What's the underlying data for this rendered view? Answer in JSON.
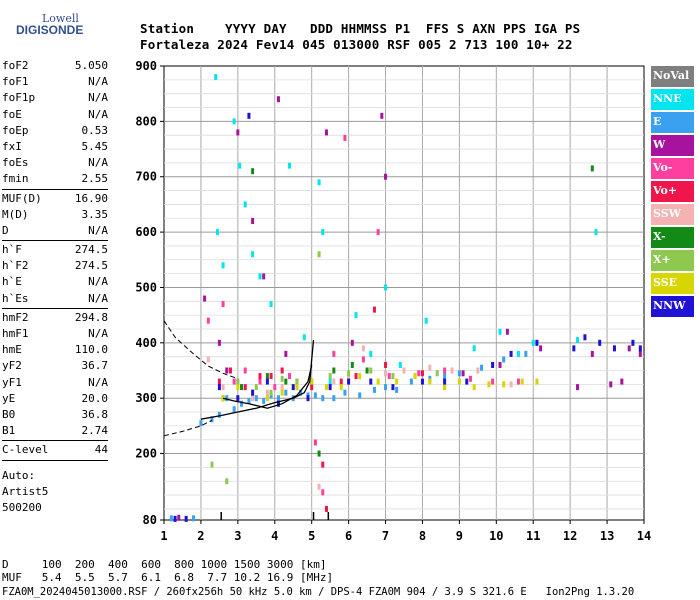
{
  "logo": {
    "line1": "Lowell",
    "line2": "DIGISONDE"
  },
  "header": {
    "line1": "Station    YYYY DAY   DDD HHMMSS P1  FFS S AXN PPS IGA PS",
    "line2": "Fortaleza 2024 Fev14 045 013000 RSF 005 2 713 100 10+ 22"
  },
  "params": [
    {
      "name": "foF2",
      "value": "5.050"
    },
    {
      "name": "foF1",
      "value": "N/A"
    },
    {
      "name": "foF1p",
      "value": "N/A"
    },
    {
      "name": "foE",
      "value": "N/A"
    },
    {
      "name": "foEp",
      "value": "0.53"
    },
    {
      "name": "fxI",
      "value": "5.45"
    },
    {
      "name": "foEs",
      "value": "N/A"
    },
    {
      "name": "fmin",
      "value": "2.55"
    },
    {
      "sep": true
    },
    {
      "name": "MUF(D)",
      "value": "16.90"
    },
    {
      "name": "M(D)",
      "value": "3.35"
    },
    {
      "name": "D",
      "value": "N/A"
    },
    {
      "sep": true
    },
    {
      "name": "h`F",
      "value": "274.5"
    },
    {
      "name": "h`F2",
      "value": "274.5"
    },
    {
      "name": "h`E",
      "value": "N/A"
    },
    {
      "name": "h`Es",
      "value": "N/A"
    },
    {
      "sep": true
    },
    {
      "name": "hmF2",
      "value": "294.8"
    },
    {
      "name": "hmF1",
      "value": "N/A"
    },
    {
      "name": "hmE",
      "value": "110.0"
    },
    {
      "name": "yF2",
      "value": "36.7"
    },
    {
      "name": "yF1",
      "value": "N/A"
    },
    {
      "name": "yE",
      "value": "20.0"
    },
    {
      "name": "B0",
      "value": "36.8"
    },
    {
      "name": "B1",
      "value": "2.74"
    },
    {
      "sep": true
    },
    {
      "name": "C-level",
      "value": "44"
    },
    {
      "sep": true
    }
  ],
  "auto": {
    "line1": "Auto:",
    "line2": "Artist5",
    "line3": "500200"
  },
  "legend": [
    {
      "label": "NoVal",
      "color": "#7f7f7f"
    },
    {
      "label": "NNE",
      "color": "#00e5ee"
    },
    {
      "label": "E",
      "color": "#3aa0f0"
    },
    {
      "label": "W",
      "color": "#a8139e"
    },
    {
      "label": "Vo-",
      "color": "#ff3fa0"
    },
    {
      "label": "Vo+",
      "color": "#f0154a"
    },
    {
      "label": "SSW",
      "color": "#f5b2b2"
    },
    {
      "label": "X-",
      "color": "#138a16"
    },
    {
      "label": "X+",
      "color": "#8ec84e"
    },
    {
      "label": "SSE",
      "color": "#d8d600"
    },
    {
      "label": "NNW",
      "color": "#1f12d4"
    }
  ],
  "footer": {
    "line_d": "D     100  200  400  600  800 1000 1500 3000 [km]",
    "line_muf": "MUF   5.4  5.5  5.7  6.1  6.8  7.7 10.2 16.9 [MHz]",
    "line_info": "FZA0M_2024045013000.RSF / 260fx256h 50 kHz 5.0 km / DPS-4 FZA0M 904 / 3.9 S 321.6 E   Ion2Png 1.3.20"
  },
  "chart_data": {
    "type": "scatter",
    "title": "",
    "xlabel": "",
    "ylabel": "",
    "xlim": [
      1,
      14
    ],
    "ylim": [
      80,
      900
    ],
    "x_ticks": [
      "1",
      "2",
      "3",
      "4",
      "5",
      "6",
      "7",
      "8",
      "9",
      "10",
      "11",
      "12",
      "13",
      "14"
    ],
    "y_ticks": [
      "80",
      "200",
      "300",
      "400",
      "500",
      "600",
      "700",
      "800",
      "900"
    ],
    "y_tick_values": [
      80,
      200,
      300,
      400,
      500,
      600,
      700,
      800,
      900
    ],
    "grid": true,
    "markers": {
      "foF2": 5.05,
      "fmin": 2.55,
      "fxI": 5.45
    },
    "series": [
      {
        "name": "NNE",
        "color": "#00e5ee",
        "points": [
          [
            2.4,
            880
          ],
          [
            2.45,
            600
          ],
          [
            2.6,
            540
          ],
          [
            2.9,
            800
          ],
          [
            3.05,
            720
          ],
          [
            3.2,
            650
          ],
          [
            3.4,
            560
          ],
          [
            3.6,
            520
          ],
          [
            3.9,
            470
          ],
          [
            4.4,
            720
          ],
          [
            4.8,
            410
          ],
          [
            5.2,
            690
          ],
          [
            5.3,
            600
          ],
          [
            5.5,
            330
          ],
          [
            6.2,
            450
          ],
          [
            6.6,
            380
          ],
          [
            7.0,
            500
          ],
          [
            7.4,
            360
          ],
          [
            8.1,
            440
          ],
          [
            9.4,
            390
          ],
          [
            10.1,
            420
          ],
          [
            10.6,
            380
          ],
          [
            11.0,
            400
          ],
          [
            12.7,
            600
          ],
          [
            12.2,
            405
          ]
        ]
      },
      {
        "name": "E",
        "color": "#3aa0f0",
        "points": [
          [
            2.0,
            255
          ],
          [
            2.3,
            262
          ],
          [
            2.5,
            270
          ],
          [
            2.7,
            300
          ],
          [
            2.9,
            280
          ],
          [
            3.1,
            290
          ],
          [
            3.3,
            295
          ],
          [
            3.5,
            300
          ],
          [
            3.7,
            295
          ],
          [
            3.9,
            305
          ],
          [
            4.1,
            300
          ],
          [
            4.3,
            310
          ],
          [
            4.5,
            300
          ],
          [
            4.7,
            310
          ],
          [
            4.9,
            305
          ],
          [
            5.1,
            305
          ],
          [
            5.3,
            300
          ],
          [
            5.6,
            300
          ],
          [
            5.9,
            310
          ],
          [
            6.3,
            305
          ],
          [
            6.7,
            315
          ],
          [
            7.0,
            320
          ],
          [
            7.3,
            315
          ],
          [
            7.7,
            330
          ],
          [
            8.2,
            335
          ],
          [
            8.6,
            340
          ],
          [
            9.0,
            345
          ],
          [
            9.6,
            355
          ],
          [
            10.2,
            370
          ],
          [
            10.8,
            380
          ],
          [
            1.2,
            83
          ],
          [
            1.8,
            83
          ]
        ]
      },
      {
        "name": "W",
        "color": "#a8139e",
        "points": [
          [
            2.1,
            480
          ],
          [
            2.5,
            400
          ],
          [
            2.7,
            350
          ],
          [
            3.0,
            780
          ],
          [
            3.4,
            620
          ],
          [
            3.7,
            520
          ],
          [
            4.1,
            840
          ],
          [
            4.3,
            380
          ],
          [
            5.4,
            780
          ],
          [
            6.1,
            400
          ],
          [
            6.9,
            810
          ],
          [
            7.0,
            700
          ],
          [
            9.1,
            345
          ],
          [
            10.1,
            360
          ],
          [
            10.3,
            420
          ],
          [
            11.2,
            390
          ],
          [
            12.2,
            320
          ],
          [
            12.6,
            380
          ],
          [
            13.1,
            325
          ],
          [
            13.4,
            330
          ],
          [
            13.6,
            390
          ],
          [
            13.9,
            380
          ],
          [
            1.4,
            84
          ]
        ]
      },
      {
        "name": "Vo-",
        "color": "#ff3fa0",
        "points": [
          [
            2.2,
            440
          ],
          [
            2.6,
            470
          ],
          [
            2.9,
            330
          ],
          [
            3.2,
            350
          ],
          [
            3.6,
            330
          ],
          [
            4.0,
            320
          ],
          [
            4.4,
            340
          ],
          [
            5.1,
            220
          ],
          [
            5.3,
            130
          ],
          [
            5.6,
            380
          ],
          [
            5.9,
            770
          ],
          [
            6.4,
            370
          ],
          [
            6.8,
            600
          ],
          [
            7.1,
            340
          ],
          [
            7.9,
            345
          ],
          [
            8.6,
            350
          ],
          [
            9.3,
            335
          ],
          [
            9.9,
            330
          ],
          [
            10.6,
            330
          ]
        ]
      },
      {
        "name": "Vo+",
        "color": "#f0154a",
        "points": [
          [
            2.5,
            330
          ],
          [
            2.8,
            350
          ],
          [
            3.2,
            320
          ],
          [
            3.6,
            340
          ],
          [
            3.9,
            340
          ],
          [
            4.2,
            350
          ],
          [
            4.6,
            330
          ],
          [
            5.0,
            320
          ],
          [
            5.4,
            100
          ],
          [
            5.3,
            180
          ],
          [
            5.8,
            330
          ],
          [
            6.2,
            340
          ],
          [
            6.7,
            460
          ],
          [
            7.0,
            360
          ],
          [
            8.0,
            345
          ]
        ]
      },
      {
        "name": "SSW",
        "color": "#f5b2b2",
        "points": [
          [
            2.2,
            370
          ],
          [
            2.6,
            320
          ],
          [
            3.0,
            330
          ],
          [
            3.4,
            300
          ],
          [
            3.8,
            310
          ],
          [
            4.2,
            320
          ],
          [
            4.6,
            320
          ],
          [
            5.2,
            140
          ],
          [
            5.6,
            330
          ],
          [
            6.0,
            340
          ],
          [
            6.4,
            390
          ],
          [
            7.0,
            345
          ],
          [
            7.5,
            350
          ],
          [
            8.2,
            355
          ],
          [
            8.8,
            350
          ],
          [
            9.5,
            350
          ],
          [
            10.4,
            325
          ]
        ]
      },
      {
        "name": "X-",
        "color": "#138a16",
        "points": [
          [
            2.6,
            300
          ],
          [
            3.1,
            320
          ],
          [
            3.4,
            710
          ],
          [
            3.8,
            340
          ],
          [
            4.3,
            330
          ],
          [
            5.0,
            330
          ],
          [
            5.2,
            200
          ],
          [
            5.6,
            350
          ],
          [
            6.1,
            360
          ],
          [
            6.5,
            350
          ],
          [
            12.6,
            715
          ]
        ]
      },
      {
        "name": "X+",
        "color": "#8ec84e",
        "points": [
          [
            2.3,
            180
          ],
          [
            2.7,
            150
          ],
          [
            3.0,
            330
          ],
          [
            3.5,
            320
          ],
          [
            3.9,
            310
          ],
          [
            4.2,
            335
          ],
          [
            4.6,
            330
          ],
          [
            5.2,
            560
          ],
          [
            5.5,
            340
          ],
          [
            6.0,
            345
          ],
          [
            6.6,
            350
          ],
          [
            7.2,
            340
          ],
          [
            7.8,
            340
          ],
          [
            8.4,
            345
          ]
        ]
      },
      {
        "name": "SSE",
        "color": "#d8d600",
        "points": [
          [
            2.6,
            300
          ],
          [
            3.0,
            320
          ],
          [
            3.4,
            310
          ],
          [
            3.8,
            300
          ],
          [
            4.2,
            310
          ],
          [
            4.6,
            320
          ],
          [
            5.0,
            330
          ],
          [
            5.4,
            320
          ],
          [
            5.8,
            320
          ],
          [
            6.3,
            340
          ],
          [
            6.8,
            330
          ],
          [
            7.3,
            330
          ],
          [
            7.8,
            340
          ],
          [
            8.2,
            330
          ],
          [
            8.6,
            320
          ],
          [
            9.0,
            330
          ],
          [
            9.4,
            320
          ],
          [
            9.8,
            325
          ],
          [
            10.2,
            325
          ],
          [
            10.7,
            330
          ],
          [
            11.1,
            330
          ]
        ]
      },
      {
        "name": "NNW",
        "color": "#1f12d4",
        "points": [
          [
            2.5,
            320
          ],
          [
            3.0,
            300
          ],
          [
            3.3,
            810
          ],
          [
            3.4,
            310
          ],
          [
            3.8,
            330
          ],
          [
            4.1,
            290
          ],
          [
            4.5,
            320
          ],
          [
            4.9,
            300
          ],
          [
            5.5,
            320
          ],
          [
            6.0,
            330
          ],
          [
            6.6,
            330
          ],
          [
            7.2,
            320
          ],
          [
            8.0,
            330
          ],
          [
            8.6,
            330
          ],
          [
            9.2,
            330
          ],
          [
            9.9,
            360
          ],
          [
            10.4,
            380
          ],
          [
            11.1,
            400
          ],
          [
            12.1,
            390
          ],
          [
            12.4,
            410
          ],
          [
            12.8,
            400
          ],
          [
            13.2,
            390
          ],
          [
            13.7,
            400
          ],
          [
            13.9,
            390
          ],
          [
            1.3,
            82
          ],
          [
            1.6,
            82
          ]
        ]
      }
    ],
    "traces": {
      "dashed_extrapolation_low": [
        [
          1.0,
          232
        ],
        [
          1.5,
          240
        ],
        [
          2.0,
          250
        ],
        [
          2.3,
          260
        ]
      ],
      "dashed_extrapolation_high": [
        [
          1.0,
          440
        ],
        [
          1.3,
          410
        ],
        [
          1.8,
          380
        ],
        [
          2.2,
          358
        ],
        [
          2.6,
          345
        ],
        [
          3.0,
          335
        ]
      ],
      "o_trace": [
        [
          2.0,
          262
        ],
        [
          2.5,
          268
        ],
        [
          3.0,
          275
        ],
        [
          3.5,
          282
        ],
        [
          4.0,
          292
        ],
        [
          4.5,
          300
        ],
        [
          4.8,
          310
        ],
        [
          4.95,
          330
        ],
        [
          5.0,
          370
        ],
        [
          5.05,
          405
        ]
      ],
      "x_trace": [
        [
          2.6,
          300
        ],
        [
          2.9,
          295
        ],
        [
          3.3,
          290
        ],
        [
          3.8,
          282
        ],
        [
          4.2,
          290
        ],
        [
          4.6,
          305
        ],
        [
          4.9,
          330
        ],
        [
          5.0,
          360
        ]
      ]
    }
  }
}
